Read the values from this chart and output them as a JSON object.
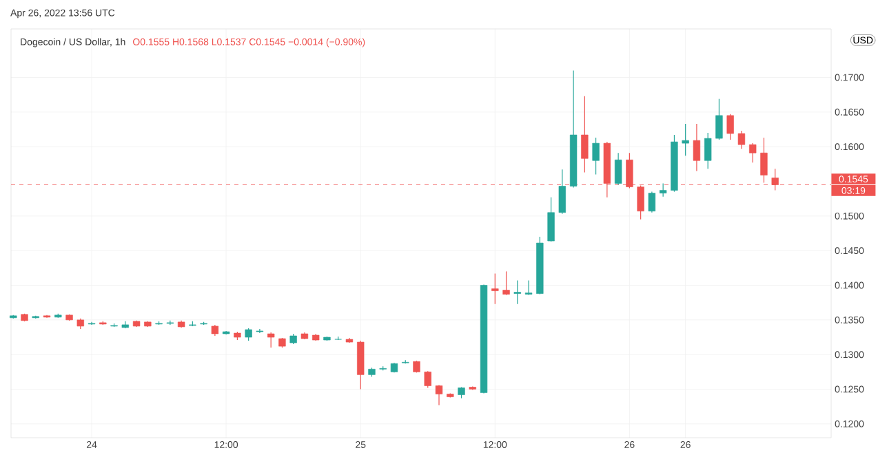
{
  "chart_data": {
    "type": "candlestick",
    "title": "Dogecoin / US Dollar, 1h",
    "subtitle": "O0.1555 H0.1568 L0.1537 C0.1545 −0.0014 (−0.90%)",
    "ylabel": "USD",
    "annotations": [
      "Apr 26, 2022 13:56 UTC",
      "03:19"
    ],
    "x": [
      "2022-04-23T17:00",
      "2022-04-23T18:00",
      "2022-04-23T19:00",
      "2022-04-23T20:00",
      "2022-04-23T21:00",
      "2022-04-23T22:00",
      "2022-04-23T23:00",
      "2022-04-24T00:00",
      "2022-04-24T01:00",
      "2022-04-24T02:00",
      "2022-04-24T03:00",
      "2022-04-24T04:00",
      "2022-04-24T05:00",
      "2022-04-24T06:00",
      "2022-04-24T07:00",
      "2022-04-24T08:00",
      "2022-04-24T09:00",
      "2022-04-24T10:00",
      "2022-04-24T11:00",
      "2022-04-24T12:00",
      "2022-04-24T13:00",
      "2022-04-24T14:00",
      "2022-04-24T15:00",
      "2022-04-24T16:00",
      "2022-04-24T17:00",
      "2022-04-24T18:00",
      "2022-04-24T19:00",
      "2022-04-24T20:00",
      "2022-04-24T21:00",
      "2022-04-24T22:00",
      "2022-04-24T23:00",
      "2022-04-25T00:00",
      "2022-04-25T01:00",
      "2022-04-25T02:00",
      "2022-04-25T03:00",
      "2022-04-25T04:00",
      "2022-04-25T05:00",
      "2022-04-25T06:00",
      "2022-04-25T07:00",
      "2022-04-25T08:00",
      "2022-04-25T09:00",
      "2022-04-25T10:00",
      "2022-04-25T11:00",
      "2022-04-25T12:00",
      "2022-04-25T13:00",
      "2022-04-25T14:00",
      "2022-04-25T15:00",
      "2022-04-25T16:00",
      "2022-04-25T17:00",
      "2022-04-25T18:00",
      "2022-04-25T19:00",
      "2022-04-25T20:00",
      "2022-04-25T21:00",
      "2022-04-25T22:00",
      "2022-04-25T23:00",
      "2022-04-26T00:00",
      "2022-04-26T01:00",
      "2022-04-26T02:00",
      "2022-04-26T03:00",
      "2022-04-26T04:00",
      "2022-04-26T05:00",
      "2022-04-26T06:00",
      "2022-04-26T07:00",
      "2022-04-26T08:00",
      "2022-04-26T09:00",
      "2022-04-26T10:00",
      "2022-04-26T11:00",
      "2022-04-26T12:00",
      "2022-04-26T13:00"
    ],
    "ohlc": [
      [
        0.1353,
        0.1357,
        0.1352,
        0.1356
      ],
      [
        0.1358,
        0.1359,
        0.1348,
        0.1349
      ],
      [
        0.1353,
        0.1356,
        0.1352,
        0.1355
      ],
      [
        0.1356,
        0.1357,
        0.1353,
        0.1354
      ],
      [
        0.1354,
        0.1359,
        0.1353,
        0.1357
      ],
      [
        0.1357,
        0.1358,
        0.1349,
        0.135
      ],
      [
        0.135,
        0.1352,
        0.1337,
        0.1341
      ],
      [
        0.1344,
        0.1347,
        0.1343,
        0.1345
      ],
      [
        0.1346,
        0.1348,
        0.1343,
        0.1344
      ],
      [
        0.1341,
        0.1345,
        0.134,
        0.1342
      ],
      [
        0.1339,
        0.1348,
        0.1338,
        0.1343
      ],
      [
        0.1348,
        0.1349,
        0.134,
        0.1341
      ],
      [
        0.1347,
        0.1348,
        0.134,
        0.1341
      ],
      [
        0.1344,
        0.1348,
        0.1343,
        0.1345
      ],
      [
        0.1345,
        0.1349,
        0.1343,
        0.1346
      ],
      [
        0.1347,
        0.1349,
        0.1339,
        0.134
      ],
      [
        0.1342,
        0.1348,
        0.1341,
        0.1343
      ],
      [
        0.1344,
        0.1347,
        0.1343,
        0.1345
      ],
      [
        0.1341,
        0.1343,
        0.1327,
        0.133
      ],
      [
        0.133,
        0.1334,
        0.1329,
        0.1333
      ],
      [
        0.1331,
        0.1333,
        0.1321,
        0.1325
      ],
      [
        0.1325,
        0.1338,
        0.132,
        0.1336
      ],
      [
        0.1333,
        0.1337,
        0.1331,
        0.1334
      ],
      [
        0.133,
        0.1332,
        0.131,
        0.1325
      ],
      [
        0.1323,
        0.1324,
        0.131,
        0.1312
      ],
      [
        0.1317,
        0.133,
        0.1315,
        0.1327
      ],
      [
        0.133,
        0.1332,
        0.1322,
        0.1323
      ],
      [
        0.1328,
        0.133,
        0.132,
        0.1321
      ],
      [
        0.1321,
        0.1326,
        0.132,
        0.1325
      ],
      [
        0.1322,
        0.1326,
        0.1321,
        0.1322
      ],
      [
        0.1322,
        0.1324,
        0.1317,
        0.1318
      ],
      [
        0.1318,
        0.132,
        0.125,
        0.1271
      ],
      [
        0.1271,
        0.1281,
        0.1268,
        0.1279
      ],
      [
        0.1279,
        0.1283,
        0.1277,
        0.128
      ],
      [
        0.1275,
        0.1288,
        0.1274,
        0.1287
      ],
      [
        0.1288,
        0.1292,
        0.1287,
        0.1289
      ],
      [
        0.129,
        0.1291,
        0.1274,
        0.1275
      ],
      [
        0.1275,
        0.1276,
        0.1252,
        0.1255
      ],
      [
        0.1255,
        0.1256,
        0.1227,
        0.1243
      ],
      [
        0.1243,
        0.1244,
        0.1238,
        0.1239
      ],
      [
        0.1242,
        0.1253,
        0.1237,
        0.1252
      ],
      [
        0.1253,
        0.1254,
        0.1249,
        0.125
      ],
      [
        0.1245,
        0.1401,
        0.1244,
        0.14
      ],
      [
        0.1395,
        0.1417,
        0.1373,
        0.1392
      ],
      [
        0.1393,
        0.142,
        0.1386,
        0.1387
      ],
      [
        0.1388,
        0.1407,
        0.1373,
        0.139
      ],
      [
        0.1387,
        0.1407,
        0.1386,
        0.1389
      ],
      [
        0.1388,
        0.147,
        0.1387,
        0.1461
      ],
      [
        0.1464,
        0.1527,
        0.1463,
        0.1505
      ],
      [
        0.1505,
        0.1567,
        0.1503,
        0.1543
      ],
      [
        0.1543,
        0.171,
        0.1541,
        0.1617
      ],
      [
        0.1617,
        0.1673,
        0.1563,
        0.1583
      ],
      [
        0.158,
        0.1613,
        0.156,
        0.1605
      ],
      [
        0.1605,
        0.1607,
        0.1527,
        0.1547
      ],
      [
        0.1547,
        0.1591,
        0.1545,
        0.1581
      ],
      [
        0.1581,
        0.1591,
        0.154,
        0.1542
      ],
      [
        0.1542,
        0.1544,
        0.1495,
        0.1507
      ],
      [
        0.1507,
        0.1535,
        0.1505,
        0.1533
      ],
      [
        0.1533,
        0.1547,
        0.1528,
        0.1537
      ],
      [
        0.1537,
        0.1617,
        0.1535,
        0.1607
      ],
      [
        0.1605,
        0.1633,
        0.1587,
        0.1609
      ],
      [
        0.1609,
        0.1633,
        0.1565,
        0.158
      ],
      [
        0.158,
        0.162,
        0.1568,
        0.1612
      ],
      [
        0.1612,
        0.1669,
        0.161,
        0.1645
      ],
      [
        0.1645,
        0.1647,
        0.161,
        0.1619
      ],
      [
        0.1619,
        0.1623,
        0.1597,
        0.1603
      ],
      [
        0.1603,
        0.1605,
        0.1577,
        0.1591
      ],
      [
        0.1591,
        0.1613,
        0.1548,
        0.1559
      ],
      [
        0.1555,
        0.1568,
        0.1537,
        0.1545
      ]
    ],
    "colors": [
      "#26a69a",
      "#ef5350",
      "#26a69a",
      "#ef5350",
      "#26a69a",
      "#ef5350",
      "#ef5350",
      "#26a69a",
      "#ef5350",
      "#26a69a",
      "#26a69a",
      "#ef5350",
      "#ef5350",
      "#26a69a",
      "#26a69a",
      "#ef5350",
      "#26a69a",
      "#26a69a",
      "#ef5350",
      "#26a69a",
      "#ef5350",
      "#26a69a",
      "#26a69a",
      "#ef5350",
      "#ef5350",
      "#26a69a",
      "#ef5350",
      "#ef5350",
      "#26a69a",
      "#26a69a",
      "#ef5350",
      "#ef5350",
      "#26a69a",
      "#26a69a",
      "#26a69a",
      "#26a69a",
      "#ef5350",
      "#ef5350",
      "#ef5350",
      "#ef5350",
      "#26a69a",
      "#ef5350",
      "#26a69a",
      "#ef5350",
      "#ef5350",
      "#26a69a",
      "#26a69a",
      "#26a69a",
      "#26a69a",
      "#26a69a",
      "#26a69a",
      "#ef5350",
      "#26a69a",
      "#ef5350",
      "#26a69a",
      "#ef5350",
      "#ef5350",
      "#26a69a",
      "#26a69a",
      "#26a69a",
      "#26a69a",
      "#ef5350",
      "#26a69a",
      "#26a69a",
      "#ef5350",
      "#ef5350",
      "#ef5350",
      "#ef5350",
      "#ef5350"
    ],
    "xlim": [
      "2022-04-23T16:48",
      "2022-04-26T18:00"
    ],
    "ylim": [
      0.118,
      0.177
    ],
    "xticks": [
      {
        "value": "2022-04-24",
        "label": "24"
      },
      {
        "value": "2022-04-24T12:00",
        "label": "12:00"
      },
      {
        "value": "2022-04-25",
        "label": "25"
      },
      {
        "value": "2022-04-25T12:00",
        "label": "12:00"
      },
      {
        "value": "2022-04-26",
        "label": "26"
      },
      {
        "value": "2022-04-26T05:00",
        "label": "26"
      }
    ],
    "yticks": [
      {
        "value": 0.12,
        "label": "0.1200"
      },
      {
        "value": 0.125,
        "label": "0.1250"
      },
      {
        "value": 0.13,
        "label": "0.1300"
      },
      {
        "value": 0.135,
        "label": "0.1350"
      },
      {
        "value": 0.14,
        "label": "0.1400"
      },
      {
        "value": 0.145,
        "label": "0.1450"
      },
      {
        "value": 0.15,
        "label": "0.1500"
      },
      {
        "value": 0.16,
        "label": "0.1600"
      },
      {
        "value": 0.165,
        "label": "0.1650"
      },
      {
        "value": 0.17,
        "label": "0.1700"
      }
    ],
    "ref_lines": [
      {
        "axis": "y",
        "value": 0.1545,
        "label": "0.1545",
        "color": "#ef5350",
        "line_style": "dashed"
      }
    ],
    "grid": true
  }
}
